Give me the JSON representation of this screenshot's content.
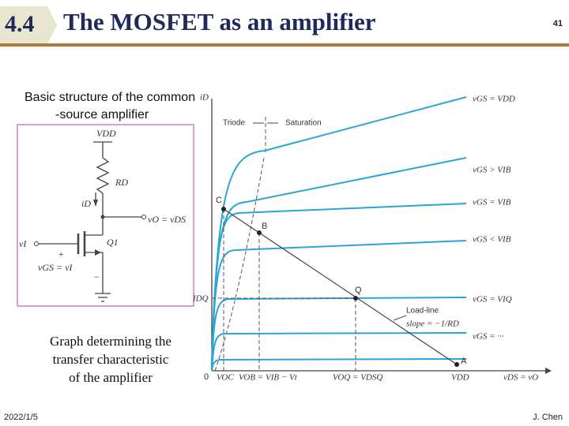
{
  "header": {
    "section": "4.4",
    "title": "The MOSFET as an amplifier",
    "page_number": "41"
  },
  "captions": {
    "circuit": [
      "Basic structure of the common",
      "-source amplifier"
    ],
    "graph": [
      "Graph determining the",
      "transfer characteristic",
      "of the amplifier"
    ]
  },
  "circuit": {
    "labels": [
      "VDD",
      "RD",
      "iD",
      "vO = vDS",
      "Q1",
      "vI",
      "+",
      "vGS = vI",
      "−"
    ]
  },
  "graph": {
    "labels": [
      "iD",
      "Triode",
      "Saturation",
      "vGS = VDD",
      "vGS > VIB",
      "vGS = VIB",
      "vGS < VIB",
      "vGS = VIQ",
      "vGS = ···",
      "C",
      "B",
      "Q",
      "A",
      "IDQ",
      "Load-line",
      "slope = −1/RD",
      "0",
      "VOC",
      "VOB = VIB − Vt",
      "VOQ = VDSQ",
      "VDD",
      "vDS = vO"
    ]
  },
  "footer": {
    "date": "2022/1/5",
    "author": "J. Chen"
  }
}
